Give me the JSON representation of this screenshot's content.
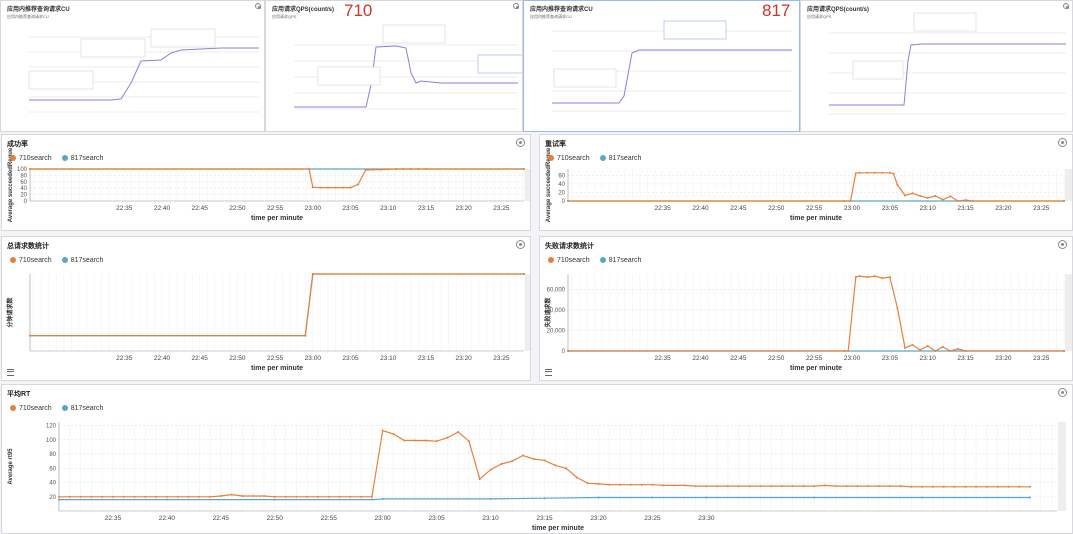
{
  "overlay_labels": [
    "710",
    "817"
  ],
  "top_panels": [
    {
      "title": "应用内推荐查询请求CU",
      "legend": "应用内推荐查询请求CU"
    },
    {
      "title": "应用请求QPS(count/s)",
      "legend": "应用请求QPS"
    },
    {
      "title": "应用内推荐查询请求CU",
      "legend": "应用内推荐查询请求CU"
    },
    {
      "title": "应用请求QPS(count/s)",
      "legend": "应用请求QPS"
    }
  ],
  "colors": {
    "orange": "#e8803a",
    "teal": "#5ba7c3",
    "purple": "#8b7ee8",
    "grid": "#e3e3e3"
  },
  "chart_data": [
    {
      "type": "line",
      "title": "成功率",
      "xlabel": "time per minute",
      "ylabel": "Average succeededReque",
      "x_ticks": [
        "22:35",
        "22:40",
        "22:45",
        "22:50",
        "22:55",
        "23:00",
        "23:05",
        "23:10",
        "23:15",
        "23:20",
        "23:25"
      ],
      "y_ticks": [
        "0",
        "20",
        "40",
        "60",
        "80",
        "100"
      ],
      "ylim": [
        0,
        100
      ],
      "series": [
        {
          "name": "710search",
          "color": "#e8803a",
          "points": [
            [
              22.5,
              100
            ],
            [
              59.5,
              100
            ],
            [
              60,
              43
            ],
            [
              61,
              42
            ],
            [
              62,
              42
            ],
            [
              63,
              42
            ],
            [
              64,
              42
            ],
            [
              65,
              42
            ],
            [
              66,
              52
            ],
            [
              67,
              97
            ],
            [
              68,
              98
            ],
            [
              69,
              98
            ],
            [
              70,
              99
            ],
            [
              71,
              100
            ],
            [
              72,
              100
            ],
            [
              73,
              100
            ],
            [
              74,
              100
            ],
            [
              75,
              100
            ],
            [
              88,
              100
            ]
          ]
        },
        {
          "name": "817search",
          "color": "#5ba7c3",
          "points": [
            [
              22.5,
              100
            ],
            [
              88,
              100
            ]
          ]
        }
      ]
    },
    {
      "type": "line",
      "title": "重试率",
      "xlabel": "time per minute",
      "ylabel": "Average succeededReque",
      "x_ticks": [
        "22:35",
        "22:40",
        "22:45",
        "22:50",
        "22:55",
        "23:00",
        "23:05",
        "23:10",
        "23:15",
        "23:20",
        "23:25"
      ],
      "y_ticks": [
        "0",
        "20",
        "40",
        "60"
      ],
      "ylim": [
        0,
        75
      ],
      "series": [
        {
          "name": "710search",
          "color": "#e8803a",
          "points": [
            [
              22.5,
              0
            ],
            [
              59,
              0
            ],
            [
              59.8,
              0
            ],
            [
              60.5,
              65
            ],
            [
              61,
              66
            ],
            [
              62,
              66
            ],
            [
              63,
              66
            ],
            [
              64,
              66
            ],
            [
              65,
              66
            ],
            [
              65.5,
              64
            ],
            [
              66,
              38
            ],
            [
              67,
              13
            ],
            [
              68,
              18
            ],
            [
              69,
              12
            ],
            [
              70,
              7
            ],
            [
              71,
              12
            ],
            [
              72,
              3
            ],
            [
              73,
              11
            ],
            [
              74,
              0
            ],
            [
              75,
              2
            ],
            [
              76,
              0
            ],
            [
              88,
              0
            ]
          ]
        },
        {
          "name": "817search",
          "color": "#5ba7c3",
          "points": [
            [
              22.5,
              0
            ],
            [
              88,
              0
            ]
          ]
        }
      ]
    },
    {
      "type": "line",
      "title": "总请求数统计",
      "xlabel": "time per minute",
      "ylabel": "分钟请求数",
      "x_ticks": [
        "22:35",
        "22:40",
        "22:45",
        "22:50",
        "22:55",
        "23:00",
        "23:05",
        "23:10",
        "23:15",
        "23:20",
        "23:25"
      ],
      "y_ticks": [],
      "ylim": [
        0,
        100
      ],
      "series": [
        {
          "name": "710search",
          "color": "#e8803a",
          "points": [
            [
              22.5,
              20
            ],
            [
              59,
              20
            ],
            [
              60,
              100
            ],
            [
              88,
              100
            ]
          ]
        },
        {
          "name": "817search",
          "color": "#5ba7c3",
          "points": [
            [
              22.5,
              20
            ],
            [
              59,
              20
            ],
            [
              60,
              100
            ],
            [
              88,
              100
            ]
          ]
        }
      ]
    },
    {
      "type": "line",
      "title": "失败请求数统计",
      "xlabel": "time per minute",
      "ylabel": "失败请求数",
      "x_ticks": [
        "22:35",
        "22:40",
        "22:45",
        "22:50",
        "22:55",
        "23:00",
        "23:05",
        "23:10",
        "23:15",
        "23:20",
        "23:25"
      ],
      "y_ticks": [
        "0",
        "20,000",
        "40,000",
        "60,000"
      ],
      "ylim": [
        0,
        75000
      ],
      "series": [
        {
          "name": "710search",
          "color": "#e8803a",
          "points": [
            [
              22.5,
              0
            ],
            [
              59,
              0
            ],
            [
              59.5,
              0
            ],
            [
              60.5,
              72000
            ],
            [
              61,
              73000
            ],
            [
              62,
              72000
            ],
            [
              63,
              73000
            ],
            [
              64,
              71000
            ],
            [
              65,
              72000
            ],
            [
              66,
              42000
            ],
            [
              67,
              3000
            ],
            [
              68,
              6000
            ],
            [
              69,
              1000
            ],
            [
              70,
              5000
            ],
            [
              71,
              0
            ],
            [
              72,
              4000
            ],
            [
              73,
              0
            ],
            [
              74,
              2000
            ],
            [
              75,
              0
            ],
            [
              88,
              0
            ]
          ]
        },
        {
          "name": "817search",
          "color": "#5ba7c3",
          "points": [
            [
              22.5,
              0
            ],
            [
              88,
              0
            ]
          ]
        }
      ]
    },
    {
      "type": "line",
      "title": "平均RT",
      "xlabel": "time per minute",
      "ylabel": "Average rt95",
      "x_ticks": [
        "22:35",
        "22:40",
        "22:45",
        "22:50",
        "22:55",
        "23:00",
        "23:05",
        "23:10",
        "23:15",
        "23:20",
        "23:25",
        "23:30"
      ],
      "y_ticks": [
        "20",
        "40",
        "60",
        "80",
        "100",
        "120"
      ],
      "ylim": [
        0,
        125
      ],
      "series": [
        {
          "name": "710search",
          "color": "#e8803a",
          "points": [
            [
              30,
              20
            ],
            [
              31,
              20
            ],
            [
              32,
              20
            ],
            [
              33,
              20
            ],
            [
              34,
              20
            ],
            [
              35,
              20
            ],
            [
              36,
              20
            ],
            [
              37,
              20
            ],
            [
              38,
              20
            ],
            [
              39,
              20
            ],
            [
              40,
              20
            ],
            [
              41,
              20
            ],
            [
              42,
              20
            ],
            [
              43,
              20
            ],
            [
              44,
              20
            ],
            [
              45,
              21
            ],
            [
              46,
              23
            ],
            [
              47,
              21
            ],
            [
              48,
              21
            ],
            [
              49,
              21
            ],
            [
              50,
              20
            ],
            [
              51,
              20
            ],
            [
              52,
              20
            ],
            [
              53,
              20
            ],
            [
              54,
              20
            ],
            [
              55,
              20
            ],
            [
              56,
              20
            ],
            [
              57,
              20
            ],
            [
              58,
              20
            ],
            [
              59,
              20
            ],
            [
              60,
              113
            ],
            [
              61,
              108
            ],
            [
              62,
              99
            ],
            [
              63,
              99
            ],
            [
              64,
              99
            ],
            [
              65,
              98
            ],
            [
              66,
              103
            ],
            [
              67,
              111
            ],
            [
              68,
              98
            ],
            [
              69,
              45
            ],
            [
              70,
              58
            ],
            [
              71,
              66
            ],
            [
              72,
              70
            ],
            [
              73,
              78
            ],
            [
              74,
              73
            ],
            [
              75,
              71
            ],
            [
              76,
              64
            ],
            [
              77,
              60
            ],
            [
              78,
              47
            ],
            [
              79,
              39
            ],
            [
              80,
              38
            ],
            [
              81,
              37
            ],
            [
              82,
              37
            ],
            [
              83,
              37
            ],
            [
              84,
              37
            ],
            [
              85,
              37
            ],
            [
              86,
              36
            ],
            [
              87,
              36
            ],
            [
              88,
              36
            ],
            [
              89,
              35
            ],
            [
              90,
              35
            ],
            [
              91,
              35
            ],
            [
              92,
              35
            ],
            [
              93,
              35
            ],
            [
              94,
              35
            ],
            [
              95,
              35
            ],
            [
              96,
              35
            ],
            [
              97,
              35
            ],
            [
              98,
              35
            ],
            [
              99,
              35
            ],
            [
              100,
              35
            ],
            [
              101,
              36
            ],
            [
              102,
              35
            ],
            [
              103,
              35
            ],
            [
              104,
              35
            ],
            [
              105,
              35
            ],
            [
              106,
              35
            ],
            [
              107,
              35
            ],
            [
              108,
              35
            ],
            [
              109,
              34
            ],
            [
              110,
              34
            ],
            [
              111,
              34
            ],
            [
              112,
              34
            ],
            [
              113,
              34
            ],
            [
              114,
              34
            ],
            [
              115,
              34
            ],
            [
              116,
              34
            ],
            [
              117,
              34
            ],
            [
              118,
              34
            ],
            [
              119,
              34
            ],
            [
              120,
              34
            ]
          ]
        },
        {
          "name": "817search",
          "color": "#5ba7c3",
          "points": [
            [
              30,
              16
            ],
            [
              40,
              16
            ],
            [
              50,
              16
            ],
            [
              59,
              16
            ],
            [
              60,
              17
            ],
            [
              70,
              17
            ],
            [
              75,
              18
            ],
            [
              80,
              19
            ],
            [
              85,
              19
            ],
            [
              90,
              19
            ],
            [
              100,
              19
            ],
            [
              110,
              19
            ],
            [
              120,
              19
            ]
          ]
        }
      ]
    }
  ]
}
